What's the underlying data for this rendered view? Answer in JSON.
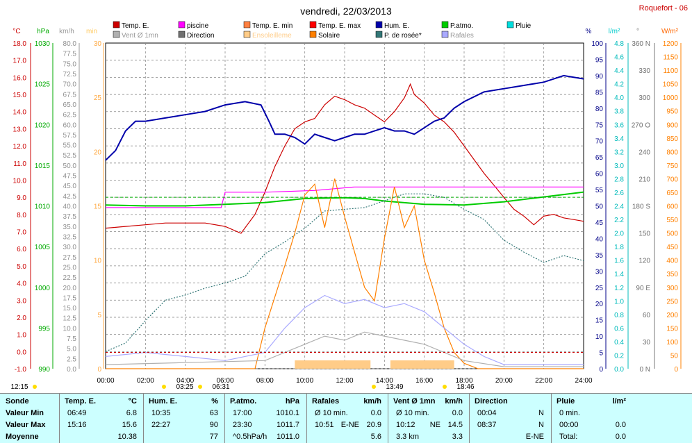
{
  "title": "vendredi, 22/03/2013",
  "station": "Roquefort - 06",
  "legend": [
    {
      "label": "Temp. E.",
      "color": "#cc0000"
    },
    {
      "label": "piscine",
      "color": "#ff00ff"
    },
    {
      "label": "Temp. E. min",
      "color": "#ff8040"
    },
    {
      "label": "Temp. E. max",
      "color": "#ff0000"
    },
    {
      "label": "Hum. E.",
      "color": "#0000aa"
    },
    {
      "label": "P.atmo.",
      "color": "#00cc00"
    },
    {
      "label": "Pluie",
      "color": "#00dddd"
    },
    {
      "label": "Vent Ø 1mn",
      "color": "#b0b0b0"
    },
    {
      "label": "Direction",
      "color": "#707070"
    },
    {
      "label": "Ensoleilleme",
      "color": "#ffcc88"
    },
    {
      "label": "Solaire",
      "color": "#ff8000"
    },
    {
      "label": "P. de rosée*",
      "color": "#337777"
    },
    {
      "label": "Rafales",
      "color": "#aaaaff"
    }
  ],
  "axes": {
    "temp": {
      "unit": "°C",
      "ticks": [
        "18.0",
        "17.0",
        "16.0",
        "15.0",
        "14.0",
        "13.0",
        "12.0",
        "11.0",
        "10.0",
        "9.0",
        "8.0",
        "7.0",
        "6.0",
        "5.0",
        "4.0",
        "3.0",
        "2.0",
        "1.0",
        "0.0",
        "-1.0"
      ]
    },
    "hpa": {
      "unit": "hPa",
      "ticks": [
        "1030",
        "1025",
        "1020",
        "1015",
        "1010",
        "1005",
        "1000",
        "995",
        "990"
      ]
    },
    "kmh": {
      "unit": "km/h",
      "ticks": [
        "80.0",
        "77.5",
        "75.0",
        "72.5",
        "70.0",
        "67.5",
        "65.0",
        "62.5",
        "60.0",
        "57.5",
        "55.0",
        "52.5",
        "50.0",
        "47.5",
        "45.0",
        "42.5",
        "40.0",
        "37.5",
        "35.0",
        "32.5",
        "30.0",
        "27.5",
        "25.0",
        "22.5",
        "20.0",
        "17.5",
        "15.0",
        "12.5",
        "10.0",
        "7.5",
        "5.0",
        "2.5",
        "0.0"
      ]
    },
    "min": {
      "unit": "min",
      "ticks": [
        "30",
        "25",
        "20",
        "15",
        "10",
        "5",
        "0"
      ]
    },
    "pct": {
      "unit": "%",
      "ticks": [
        "100",
        "95",
        "90",
        "85",
        "80",
        "75",
        "70",
        "65",
        "60",
        "55",
        "50",
        "45",
        "40",
        "35",
        "30",
        "25",
        "20",
        "15",
        "10",
        "5",
        "0"
      ]
    },
    "lm2": {
      "unit": "l/m²",
      "ticks": [
        "4.8",
        "4.6",
        "4.4",
        "4.2",
        "4.0",
        "3.8",
        "3.6",
        "3.4",
        "3.2",
        "3.0",
        "2.8",
        "2.6",
        "2.4",
        "2.2",
        "2.0",
        "1.8",
        "1.6",
        "1.4",
        "1.2",
        "1.0",
        "0.8",
        "0.6",
        "0.4",
        "0.2",
        "0.0"
      ]
    },
    "deg": {
      "unit": "°",
      "ticks": [
        "360 N",
        "330",
        "300",
        "270 O",
        "240",
        "210",
        "180 S",
        "150",
        "120",
        "90 E",
        "60",
        "30",
        "0 N"
      ]
    },
    "wm2": {
      "unit": "W/m²",
      "ticks": [
        "1200",
        "1150",
        "1100",
        "1050",
        "1000",
        "950",
        "900",
        "850",
        "800",
        "750",
        "700",
        "650",
        "600",
        "550",
        "500",
        "450",
        "400",
        "350",
        "300",
        "250",
        "200",
        "150",
        "100",
        "50",
        "0"
      ]
    },
    "x": [
      "00:00",
      "02:00",
      "04:00",
      "06:00",
      "08:00",
      "10:00",
      "12:00",
      "14:00",
      "16:00",
      "18:00",
      "20:00",
      "22:00",
      "24:00"
    ]
  },
  "markers": [
    {
      "label": "12:15",
      "kind": "moon-rise"
    },
    {
      "label": "03:25",
      "kind": "moon-set"
    },
    {
      "label": "06:31",
      "kind": "sunrise"
    },
    {
      "label": "13:49",
      "kind": "moon-high"
    },
    {
      "label": "18:46",
      "kind": "sunset"
    }
  ],
  "chart_data": {
    "type": "line",
    "title": "vendredi, 22/03/2013",
    "x_range": [
      "00:00",
      "24:00"
    ],
    "series": [
      {
        "name": "Temp. E.",
        "unit": "°C",
        "color": "#cc0000",
        "points": [
          [
            0,
            7.2
          ],
          [
            1,
            7.3
          ],
          [
            2,
            7.4
          ],
          [
            3,
            7.5
          ],
          [
            4,
            7.5
          ],
          [
            5,
            7.5
          ],
          [
            6,
            7.3
          ],
          [
            6.8,
            6.9
          ],
          [
            7.5,
            8.0
          ],
          [
            8,
            9.3
          ],
          [
            8.5,
            10.8
          ],
          [
            9,
            12.0
          ],
          [
            9.5,
            13.0
          ],
          [
            10,
            13.4
          ],
          [
            10.5,
            13.6
          ],
          [
            11,
            14.4
          ],
          [
            11.5,
            14.9
          ],
          [
            12,
            14.7
          ],
          [
            12.5,
            14.4
          ],
          [
            13,
            14.2
          ],
          [
            13.5,
            13.8
          ],
          [
            14,
            13.4
          ],
          [
            14.5,
            14.0
          ],
          [
            15,
            14.8
          ],
          [
            15.3,
            15.6
          ],
          [
            15.5,
            15.0
          ],
          [
            16,
            14.5
          ],
          [
            16.5,
            13.8
          ],
          [
            17,
            13.4
          ],
          [
            17.5,
            12.8
          ],
          [
            18,
            12.0
          ],
          [
            18.5,
            11.2
          ],
          [
            19,
            10.4
          ],
          [
            19.5,
            9.7
          ],
          [
            20,
            9.0
          ],
          [
            20.5,
            8.3
          ],
          [
            21,
            7.9
          ],
          [
            21.5,
            7.4
          ],
          [
            22,
            7.9
          ],
          [
            22.5,
            8.0
          ],
          [
            23,
            7.8
          ],
          [
            23.5,
            7.7
          ],
          [
            24,
            7.6
          ]
        ]
      },
      {
        "name": "Hum. E.",
        "unit": "%",
        "color": "#0000aa",
        "points": [
          [
            0,
            64
          ],
          [
            0.5,
            67
          ],
          [
            1,
            73
          ],
          [
            1.5,
            76
          ],
          [
            2,
            76
          ],
          [
            3,
            77
          ],
          [
            4,
            78
          ],
          [
            5,
            79
          ],
          [
            6,
            81
          ],
          [
            7,
            82
          ],
          [
            7.8,
            81
          ],
          [
            8.2,
            76
          ],
          [
            8.5,
            72
          ],
          [
            9,
            72
          ],
          [
            9.5,
            71
          ],
          [
            10,
            69
          ],
          [
            10.5,
            72
          ],
          [
            11,
            71
          ],
          [
            11.5,
            70
          ],
          [
            12,
            71
          ],
          [
            12.5,
            72
          ],
          [
            13,
            72
          ],
          [
            13.5,
            73
          ],
          [
            14,
            74
          ],
          [
            14.5,
            73
          ],
          [
            15,
            73
          ],
          [
            15.5,
            72
          ],
          [
            16,
            74
          ],
          [
            16.5,
            76
          ],
          [
            17,
            77
          ],
          [
            17.5,
            80
          ],
          [
            18,
            82
          ],
          [
            19,
            85
          ],
          [
            20,
            86
          ],
          [
            21,
            87
          ],
          [
            22,
            88
          ],
          [
            23,
            90
          ],
          [
            24,
            89
          ]
        ]
      },
      {
        "name": "P.atmo.",
        "unit": "hPa",
        "color": "#00cc00",
        "points": [
          [
            0,
            1010.1
          ],
          [
            2,
            1010.0
          ],
          [
            4,
            1010.0
          ],
          [
            6,
            1010.2
          ],
          [
            8,
            1010.4
          ],
          [
            10,
            1010.9
          ],
          [
            12,
            1011.0
          ],
          [
            13,
            1010.9
          ],
          [
            14,
            1010.6
          ],
          [
            16,
            1010.2
          ],
          [
            18,
            1010.1
          ],
          [
            20,
            1010.5
          ],
          [
            22,
            1011.1
          ],
          [
            24,
            1011.7
          ]
        ]
      },
      {
        "name": "P. de rosée*",
        "unit": "°C",
        "color": "#337777",
        "points": [
          [
            0,
            0.0
          ],
          [
            1,
            0.5
          ],
          [
            2,
            1.8
          ],
          [
            3,
            3.0
          ],
          [
            4,
            3.3
          ],
          [
            5,
            3.7
          ],
          [
            6,
            4.0
          ],
          [
            7,
            4.4
          ],
          [
            8,
            5.7
          ],
          [
            9,
            6.4
          ],
          [
            10,
            7.2
          ],
          [
            11,
            8.2
          ],
          [
            12,
            8.3
          ],
          [
            13,
            8.4
          ],
          [
            14,
            8.8
          ],
          [
            15,
            9.2
          ],
          [
            16,
            9.2
          ],
          [
            17,
            9.0
          ],
          [
            18,
            8.3
          ],
          [
            19,
            7.7
          ],
          [
            20,
            6.5
          ],
          [
            21,
            5.8
          ],
          [
            22,
            5.2
          ],
          [
            23,
            5.6
          ],
          [
            24,
            5.3
          ]
        ]
      },
      {
        "name": "piscine",
        "unit": "°C",
        "color": "#ff00ff",
        "points": [
          [
            0,
            8.4
          ],
          [
            5.8,
            8.4
          ],
          [
            6.0,
            9.3
          ],
          [
            8.0,
            9.3
          ],
          [
            10.5,
            9.4
          ],
          [
            12.5,
            9.6
          ],
          [
            18.0,
            9.6
          ],
          [
            24,
            9.6
          ]
        ]
      },
      {
        "name": "Solaire",
        "unit": "W/m²",
        "color": "#ff8000",
        "points": [
          [
            0,
            0
          ],
          [
            7.5,
            0
          ],
          [
            8,
            150
          ],
          [
            9,
            380
          ],
          [
            9.5,
            500
          ],
          [
            10,
            640
          ],
          [
            10.5,
            680
          ],
          [
            11,
            520
          ],
          [
            11.5,
            700
          ],
          [
            12,
            560
          ],
          [
            12.5,
            430
          ],
          [
            13,
            300
          ],
          [
            13.5,
            250
          ],
          [
            14,
            480
          ],
          [
            14.5,
            670
          ],
          [
            15,
            520
          ],
          [
            15.5,
            600
          ],
          [
            16,
            400
          ],
          [
            16.5,
            280
          ],
          [
            17,
            150
          ],
          [
            17.5,
            60
          ],
          [
            18,
            20
          ],
          [
            18.7,
            0
          ],
          [
            24,
            0
          ]
        ]
      },
      {
        "name": "Rafales",
        "unit": "km/h",
        "color": "#aaaaff",
        "points": [
          [
            0,
            3
          ],
          [
            2,
            4
          ],
          [
            4,
            3
          ],
          [
            6,
            2
          ],
          [
            8,
            4
          ],
          [
            9,
            10
          ],
          [
            10,
            15
          ],
          [
            11,
            18
          ],
          [
            12,
            16
          ],
          [
            13,
            17
          ],
          [
            14,
            15
          ],
          [
            15,
            16
          ],
          [
            16,
            14
          ],
          [
            17,
            10
          ],
          [
            18,
            6
          ],
          [
            19,
            3
          ],
          [
            20,
            1
          ],
          [
            22,
            1
          ],
          [
            24,
            1
          ]
        ]
      },
      {
        "name": "Vent Ø 1mn",
        "unit": "km/h",
        "color": "#b0b0b0",
        "points": [
          [
            0,
            1
          ],
          [
            4,
            1.5
          ],
          [
            8,
            2
          ],
          [
            10,
            6
          ],
          [
            11,
            8
          ],
          [
            12,
            7
          ],
          [
            13,
            9
          ],
          [
            14,
            8
          ],
          [
            15,
            7
          ],
          [
            16,
            6
          ],
          [
            17,
            4
          ],
          [
            18,
            2
          ],
          [
            20,
            0.5
          ],
          [
            24,
            0.5
          ]
        ]
      },
      {
        "name": "Ensoleilleme",
        "unit": "min",
        "color": "#ffcc88",
        "points": [
          [
            9.5,
            1
          ],
          [
            13.3,
            1
          ],
          [
            14.3,
            1
          ],
          [
            17.5,
            1
          ]
        ]
      }
    ]
  },
  "summary": {
    "sonde": {
      "header": "Sonde",
      "rows": [
        "Valeur Min",
        "Valeur Max",
        "Moyenne"
      ]
    },
    "temp": {
      "header": "Temp. E.",
      "unit": "°C",
      "rows": [
        [
          "06:49",
          "6.8"
        ],
        [
          "15:16",
          "15.6"
        ],
        [
          "",
          "10.38"
        ]
      ]
    },
    "hum": {
      "header": "Hum. E.",
      "unit": "%",
      "rows": [
        [
          "10:35",
          "63"
        ],
        [
          "22:27",
          "90"
        ],
        [
          "",
          "77"
        ]
      ]
    },
    "patmo": {
      "header": "P.atmo.",
      "unit": "hPa",
      "rows": [
        [
          "17:00",
          "1010.1"
        ],
        [
          "23:30",
          "1011.7"
        ],
        [
          "^0.5hPa/h",
          "1011.0"
        ]
      ]
    },
    "rafales": {
      "header": "Rafales",
      "unit": "km/h",
      "rows": [
        [
          "Ø 10 min.",
          "",
          "0.0"
        ],
        [
          "10:51",
          "E-NE",
          "20.9"
        ],
        [
          "",
          "",
          "5.6"
        ]
      ]
    },
    "vent": {
      "header": "Vent Ø 1mn",
      "unit": "km/h",
      "rows": [
        [
          "Ø 10 min.",
          "",
          "0.0"
        ],
        [
          "10:12",
          "NE",
          "14.5"
        ],
        [
          "3.3 km",
          "",
          "3.3"
        ]
      ]
    },
    "direction": {
      "header": "Direction",
      "unit": "",
      "rows": [
        [
          "00:04",
          "N"
        ],
        [
          "08:37",
          "N"
        ],
        [
          "",
          "E-NE"
        ]
      ]
    },
    "pluie": {
      "header": "Pluie",
      "unit": "l/m²",
      "rows": [
        [
          "0 min.",
          ""
        ],
        [
          "00:00",
          "0.0"
        ],
        [
          "Total:",
          "0.0"
        ]
      ]
    }
  }
}
